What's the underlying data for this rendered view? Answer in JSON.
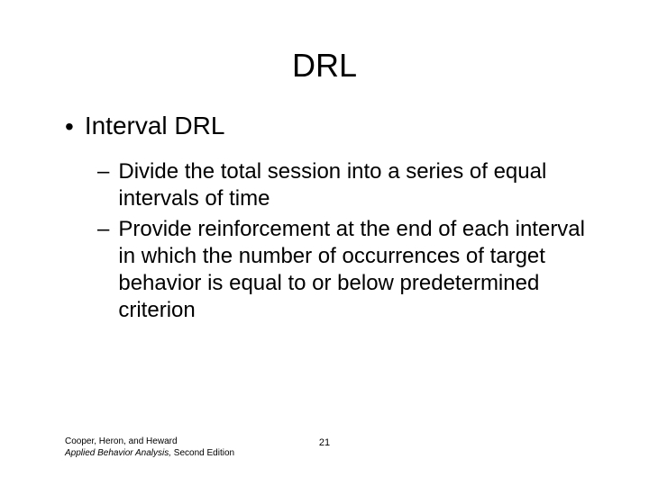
{
  "slide": {
    "title": "DRL",
    "bullet_l1": "Interval DRL",
    "bullet_l2_a": "Divide the total session into a series of equal intervals of time",
    "bullet_l2_b": "Provide reinforcement at the end of each interval in which the number of occurrences of target behavior is equal to or below predetermined criterion"
  },
  "footer": {
    "authors": "Cooper, Heron, and Heward",
    "book_italic": "Applied Behavior Analysis,",
    "book_rest": " Second Edition",
    "page_number": "21"
  },
  "style": {
    "background_color": "#ffffff",
    "text_color": "#000000",
    "title_fontsize": 36,
    "l1_fontsize": 28,
    "l2_fontsize": 24,
    "footer_fontsize": 10,
    "font_family": "Arial"
  },
  "markers": {
    "l1": "•",
    "l2": "–"
  }
}
